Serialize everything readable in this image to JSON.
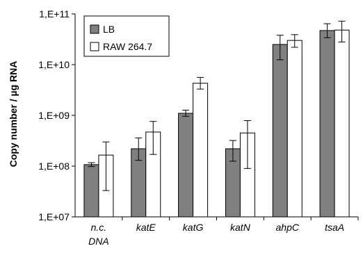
{
  "chart_data": {
    "type": "bar",
    "yscale": "log",
    "ylabel": "Copy number / µg RNA",
    "xlabel": "",
    "title": "",
    "ylim": [
      10000000,
      100000000000
    ],
    "yticks": [
      10000000,
      100000000,
      1000000000,
      10000000000,
      100000000000
    ],
    "ytick_labels": [
      "1,E+07",
      "1,E+08",
      "1,E+09",
      "1,E+10",
      "1,E+11"
    ],
    "categories": [
      [
        "n.c.",
        "DNA"
      ],
      [
        "katE"
      ],
      [
        "katG"
      ],
      [
        "katN"
      ],
      [
        "ahpC"
      ],
      [
        "tsaA"
      ]
    ],
    "series": [
      {
        "name": "LB",
        "color": "#808080",
        "values": [
          107000000,
          220000000,
          1100000000,
          220000000,
          25000000000,
          47000000000
        ],
        "err_low": [
          98000000,
          130000000,
          960000000,
          125000000,
          12500000000,
          34000000000
        ],
        "err_high": [
          117000000,
          360000000,
          1270000000,
          320000000,
          38000000000,
          64000000000
        ]
      },
      {
        "name": "RAW 264.7",
        "color": "#ffffff",
        "values": [
          165000000,
          470000000,
          4300000000,
          450000000,
          30000000000,
          48000000000
        ],
        "err_low": [
          33000000,
          170000000,
          3300000000,
          90000000,
          22000000000,
          28000000000
        ],
        "err_high": [
          300000000,
          760000000,
          5600000000,
          790000000,
          39000000000,
          72000000000
        ]
      }
    ],
    "grid": false,
    "legend": "top-left"
  }
}
